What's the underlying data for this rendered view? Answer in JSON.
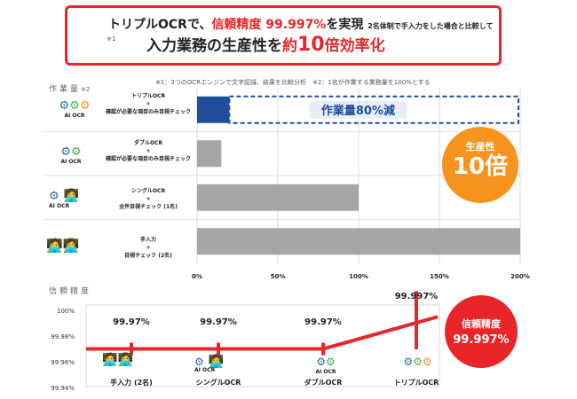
{
  "headline": {
    "line1_prefix": "トリプルOCRで、",
    "line1_highlight": "信頼精度 99.997%",
    "line1_suffix": "を実現",
    "line1_note": "2名体制で手入力をした場合と比較して",
    "line2_marker": "※1",
    "line2_prefix": "入力業務の生産性を",
    "line2_about": "約",
    "line2_number": "10",
    "line2_suffix": "倍効率化"
  },
  "footnotes": "※1：3つのOCRエンジンで文字認識、結果を比較分析　※2：1名が作業する業務量を100%とする",
  "workload": {
    "section_title": "作業量",
    "section_note": "※2",
    "reduction_label": "作業量80%減",
    "rows": [
      {
        "line1": "トリプルOCR",
        "line2": "+",
        "line3": "確認が必要な項目のみ目視チェック",
        "icon_label": "AI OCR"
      },
      {
        "line1": "ダブルOCR",
        "line2": "+",
        "line3": "確認が必要な項目のみ目視チェック",
        "icon_label": "AI OCR"
      },
      {
        "line1": "シングルOCR",
        "line2": "+",
        "line3": "全件目視チェック (1名)",
        "icon_label": "AI OCR"
      },
      {
        "line1": "手入力",
        "line2": "+",
        "line3": "目視チェック (2名)",
        "icon_label": ""
      }
    ]
  },
  "productivity_badge": {
    "label": "生産性",
    "value": "10倍"
  },
  "precision": {
    "section_title": "信頼精度",
    "ticks": [
      "100%",
      "99.98%",
      "99.96%",
      "99.94%"
    ],
    "value_labels": [
      "99.97%",
      "99.97%",
      "99.97%",
      "99.997%"
    ],
    "categories": [
      "手入力 (2名)",
      "シングルOCR",
      "ダブルOCR",
      "トリプルOCR"
    ],
    "icon_label": "AI OCR"
  },
  "precision_badge": {
    "label": "信頼精度",
    "value": "99.997%"
  },
  "colors": {
    "red": "#e8262a",
    "blue": "#1f4e9c",
    "gray": "#a6a6a6",
    "orange": "#f7941d",
    "green": "#4caf50"
  },
  "chart_data": [
    {
      "type": "bar",
      "orientation": "horizontal",
      "title": "作業量",
      "categories": [
        "トリプルOCR + 確認が必要な項目のみ目視チェック",
        "ダブルOCR + 確認が必要な項目のみ目視チェック",
        "シングルOCR + 全件目視チェック (1名)",
        "手入力 + 目視チェック (2名)"
      ],
      "values": [
        20,
        15,
        100,
        200
      ],
      "xlim": [
        0,
        200
      ],
      "xticks": [
        "0%",
        "50%",
        "100%",
        "150%",
        "200%"
      ],
      "grid": true
    },
    {
      "type": "line",
      "title": "信頼精度",
      "categories": [
        "手入力 (2名)",
        "シングルOCR",
        "ダブルOCR",
        "トリプルOCR"
      ],
      "values": [
        99.97,
        99.97,
        99.97,
        99.997
      ],
      "ylim": [
        99.94,
        100
      ],
      "yticks": [
        "100%",
        "99.98%",
        "99.96%",
        "99.94%"
      ]
    }
  ]
}
